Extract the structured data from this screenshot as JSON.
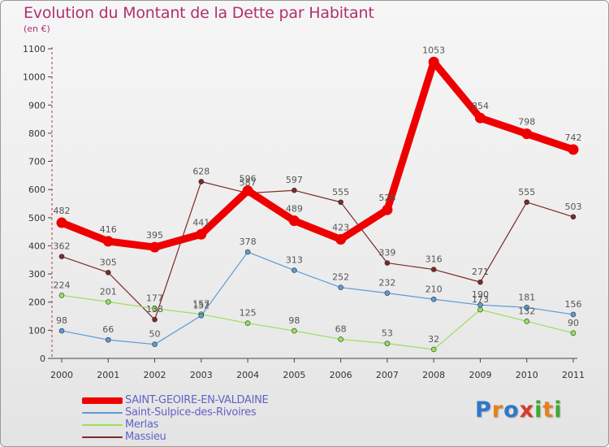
{
  "title": "Evolution du Montant de la Dette par Habitant",
  "subtitle": "(en €)",
  "logo": {
    "letters": [
      "P",
      "r",
      "o",
      "x",
      "i",
      "t",
      "i"
    ],
    "colors": [
      "#2e78c8",
      "#e8801e",
      "#2e78c8",
      "#d83a2c",
      "#3fa836",
      "#e8801e",
      "#3fa836"
    ]
  },
  "chart_data": {
    "type": "line",
    "title": "Evolution du Montant de la Dette par Habitant",
    "subtitle": "(en €)",
    "x": [
      "2000",
      "2001",
      "2002",
      "2003",
      "2004",
      "2005",
      "2006",
      "2007",
      "2008",
      "2009",
      "2010",
      "2011"
    ],
    "ylim": [
      0,
      1100
    ],
    "yticks": [
      0,
      100,
      200,
      300,
      400,
      500,
      600,
      700,
      800,
      900,
      1000,
      1100
    ],
    "grid": false,
    "legend_position": "bottom-left",
    "series": [
      {
        "name": "SAINT-GEOIRE-EN-VALDAINE",
        "color": "#ee0000",
        "values": [
          482,
          416,
          395,
          441,
          596,
          489,
          423,
          528,
          1053,
          854,
          798,
          742
        ]
      },
      {
        "name": "Saint-Sulpice-des-Rivoires",
        "color": "#5b9bd5",
        "values": [
          98,
          66,
          50,
          152,
          378,
          313,
          252,
          232,
          210,
          190,
          181,
          156
        ]
      },
      {
        "name": "Merlas",
        "color": "#99e05a",
        "values": [
          224,
          201,
          177,
          157,
          125,
          98,
          68,
          53,
          32,
          173,
          132,
          90
        ]
      },
      {
        "name": "Massieu",
        "color": "#7a2a2a",
        "values": [
          362,
          305,
          138,
          628,
          587,
          597,
          555,
          339,
          316,
          271,
          555,
          503
        ]
      }
    ]
  }
}
